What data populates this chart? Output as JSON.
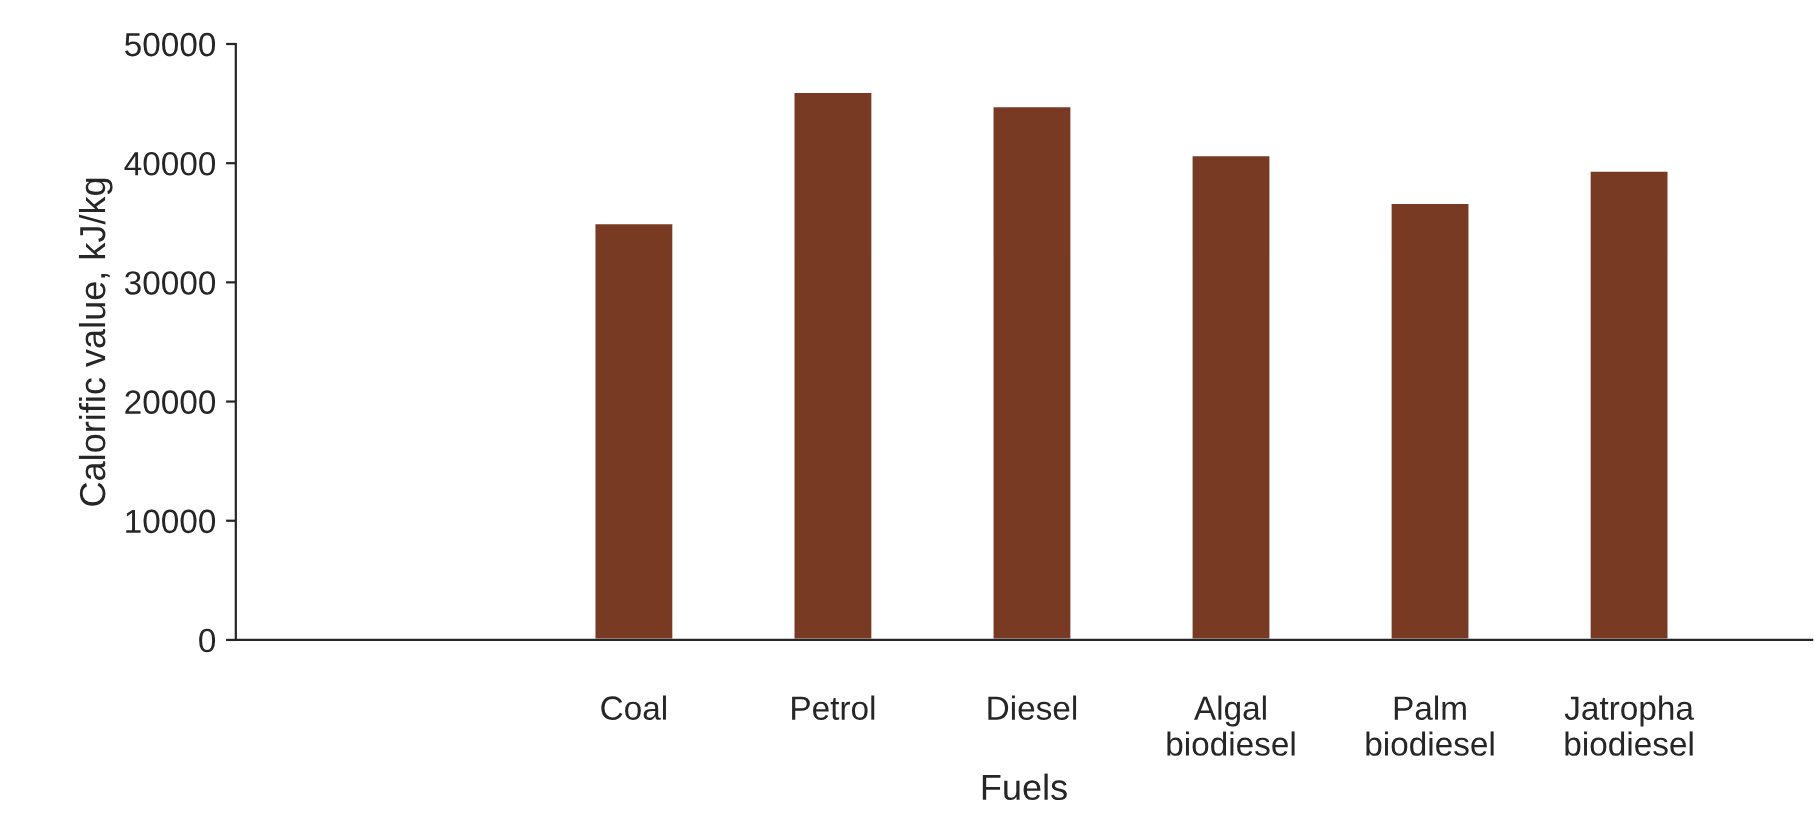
{
  "chart_data": {
    "type": "bar",
    "xlabel": "Fuels",
    "ylabel": "Calorific value, kJ/kg",
    "categories": [
      null,
      "Coal",
      "Petrol",
      "Diesel",
      "Algal\nbiodiesel",
      "Palm\nbiodiesel",
      "Jatropha\nbiodiesel"
    ],
    "values": [
      null,
      35000,
      46000,
      44800,
      40700,
      36700,
      39400
    ],
    "color": "#783a22",
    "ylim": [
      0,
      50000
    ],
    "yticks": [
      0,
      10000,
      20000,
      30000,
      40000,
      50000
    ],
    "grid": false,
    "legend": false
  }
}
